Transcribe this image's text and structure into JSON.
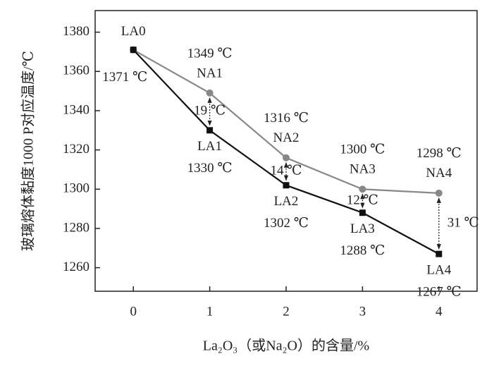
{
  "chart_data": {
    "type": "line",
    "x_label": "La₂O₃（或Na₂O）的含量/%",
    "y_label": "玻璃熔体黏度1000 P对应温度/℃",
    "x": [
      0,
      1,
      2,
      3,
      4
    ],
    "xlim": [
      -0.5,
      4.5
    ],
    "xticks": [
      0,
      1,
      2,
      3,
      4
    ],
    "ylim": [
      1248,
      1391
    ],
    "yticks": [
      1260,
      1280,
      1300,
      1320,
      1340,
      1360,
      1380
    ],
    "series": [
      {
        "color": "#888888",
        "marker": "circle",
        "values": [
          1371,
          1349,
          1316,
          1300,
          1298
        ],
        "point_names": [
          null,
          "NA1",
          "NA2",
          "NA3",
          "NA4"
        ],
        "value_labels": [
          null,
          "1349 ℃",
          "1316 ℃",
          "1300 ℃",
          "1298 ℃"
        ]
      },
      {
        "color": "#111111",
        "marker": "square",
        "values": [
          1371,
          1330,
          1302,
          1288,
          1267
        ],
        "point_names": [
          "LA0",
          "LA1",
          "LA2",
          "LA3",
          "LA4"
        ],
        "value_labels": [
          "1371 ℃",
          "1330 ℃",
          "1302 ℃",
          "1288 ℃",
          "1267 ℃"
        ]
      }
    ],
    "differences": [
      {
        "x": 1,
        "label": "19 ℃"
      },
      {
        "x": 2,
        "label": "14 ℃"
      },
      {
        "x": 3,
        "label": "12 ℃"
      },
      {
        "x": 4,
        "label": "31 ℃"
      }
    ]
  }
}
